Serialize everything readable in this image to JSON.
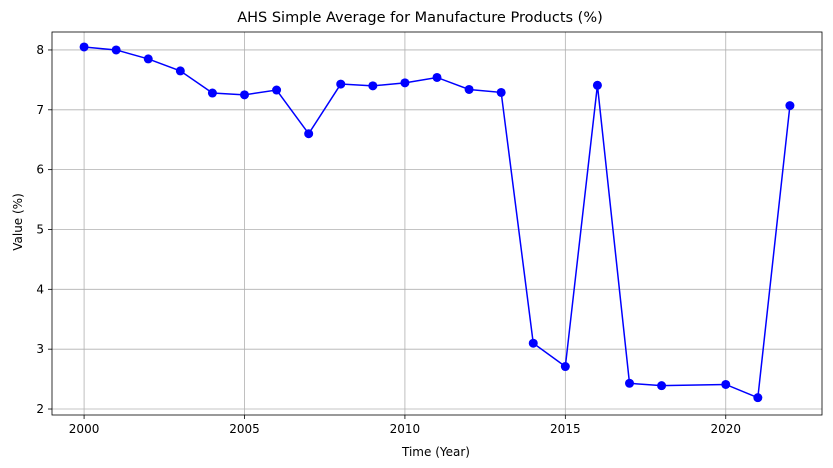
{
  "chart_data": {
    "type": "line",
    "title": "AHS Simple Average for Manufacture Products (%)",
    "xlabel": "Time (Year)",
    "ylabel": "Value (%)",
    "xlim": [
      1999.0,
      2023.0
    ],
    "ylim": [
      1.9,
      8.3
    ],
    "xticks": [
      2000,
      2005,
      2010,
      2015,
      2020
    ],
    "yticks": [
      2,
      3,
      4,
      5,
      6,
      7,
      8
    ],
    "grid": true,
    "marker": "circle",
    "color": "#0000ff",
    "series": [
      {
        "x": [
          2000,
          2001,
          2002,
          2003,
          2004,
          2005,
          2006,
          2007,
          2008,
          2009,
          2010,
          2011,
          2012,
          2013,
          2014,
          2015,
          2016,
          2017,
          2018,
          2020,
          2021,
          2022
        ],
        "values": [
          8.05,
          8.0,
          7.85,
          7.65,
          7.28,
          7.25,
          7.33,
          6.6,
          7.43,
          7.4,
          7.45,
          7.54,
          7.34,
          7.29,
          3.1,
          2.71,
          7.41,
          2.43,
          2.39,
          2.41,
          2.19,
          7.07
        ]
      }
    ]
  }
}
